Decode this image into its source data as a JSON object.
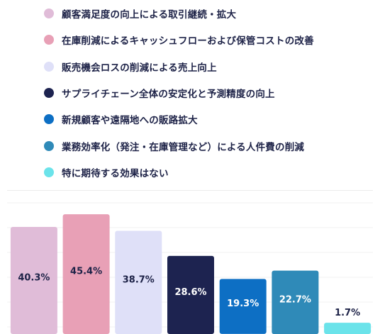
{
  "chart_data": {
    "type": "bar",
    "title": "",
    "xlabel": "",
    "ylabel": "",
    "ylim": [
      0,
      50
    ],
    "grid": true,
    "legend_position": "top",
    "categories": [
      "顧客満足度の向上による取引継続・拡大",
      "在庫削減によるキャッシュフローおよび保管コストの改善",
      "販売機会ロスの削減による売上向上",
      "サプライチェーン全体の安定化と予測精度の向上",
      "新規顧客や遠隔地への販路拡大",
      "業務効率化（発注・在庫管理など）による人件費の削減",
      "特に期待する効果はない"
    ],
    "values": [
      40.3,
      45.4,
      38.7,
      28.6,
      19.3,
      22.7,
      1.7
    ],
    "value_labels": [
      "40.3%",
      "45.4%",
      "38.7%",
      "28.6%",
      "19.3%",
      "22.7%",
      "1.7%"
    ],
    "colors": [
      "#e0bcd8",
      "#e8a0b6",
      "#dfe0f8",
      "#1d2350",
      "#0d6fc4",
      "#2f8ab8",
      "#6be3ea"
    ],
    "label_colors": [
      "#1d2247",
      "#1d2247",
      "#1d2247",
      "#ffffff",
      "#ffffff",
      "#ffffff",
      "#1d2247"
    ]
  }
}
